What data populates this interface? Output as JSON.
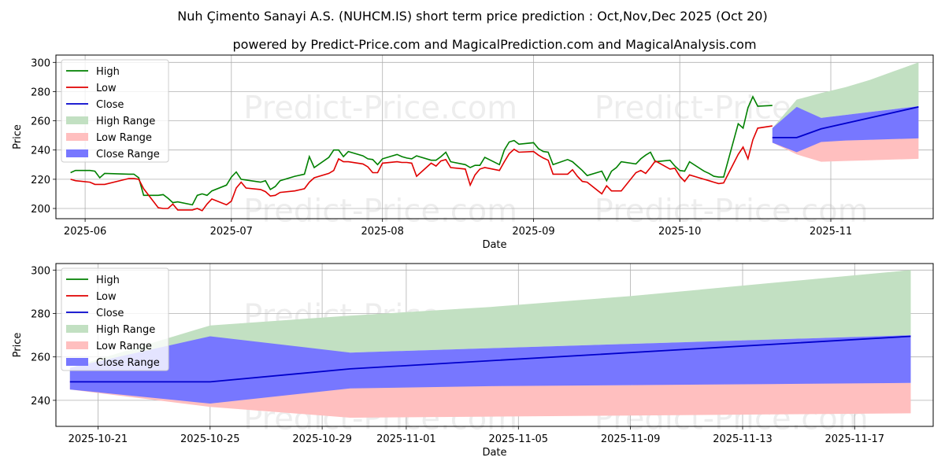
{
  "title": "Nuh Çimento Sanayi A.S. (NUHCM.IS) short term price prediction : Oct,Nov,Dec 2025 (Oct 20)",
  "subtitle": "powered by Predict-Price.com and MagicalPrediction.com and MagicalAnalysis.com",
  "watermark": "Predict-Price.com",
  "colors": {
    "high": "#008000",
    "low": "#e00000",
    "close": "#0000cc",
    "high_range": "#c2e0c2",
    "low_range": "#ffbfbf",
    "close_range": "#7777ff"
  },
  "legend": [
    "High",
    "Low",
    "Close",
    "High Range",
    "Low Range",
    "Close Range"
  ],
  "chart_data": [
    {
      "type": "line",
      "title": "",
      "xlabel": "Date",
      "ylabel": "Price",
      "xlim": [
        "2025-05-26",
        "2025-11-22"
      ],
      "ylim": [
        193,
        305
      ],
      "yticks": [
        200,
        220,
        240,
        260,
        280,
        300
      ],
      "xticks": [
        {
          "date": "2025-06-01",
          "label": "2025-06"
        },
        {
          "date": "2025-07-01",
          "label": "2025-07"
        },
        {
          "date": "2025-08-01",
          "label": "2025-08"
        },
        {
          "date": "2025-09-01",
          "label": "2025-09"
        },
        {
          "date": "2025-10-01",
          "label": "2025-10"
        },
        {
          "date": "2025-11-01",
          "label": "2025-11"
        }
      ],
      "legend_position": "top-left",
      "grid": true,
      "x": [
        "2025-05-29",
        "2025-05-30",
        "2025-06-02",
        "2025-06-03",
        "2025-06-04",
        "2025-06-05",
        "2025-06-10",
        "2025-06-11",
        "2025-06-12",
        "2025-06-13",
        "2025-06-16",
        "2025-06-17",
        "2025-06-18",
        "2025-06-19",
        "2025-06-20",
        "2025-06-23",
        "2025-06-24",
        "2025-06-25",
        "2025-06-26",
        "2025-06-27",
        "2025-06-30",
        "2025-07-01",
        "2025-07-02",
        "2025-07-03",
        "2025-07-04",
        "2025-07-07",
        "2025-07-08",
        "2025-07-09",
        "2025-07-10",
        "2025-07-11",
        "2025-07-14",
        "2025-07-16",
        "2025-07-17",
        "2025-07-18",
        "2025-07-21",
        "2025-07-22",
        "2025-07-23",
        "2025-07-24",
        "2025-07-25",
        "2025-07-28",
        "2025-07-29",
        "2025-07-30",
        "2025-07-31",
        "2025-08-01",
        "2025-08-04",
        "2025-08-05",
        "2025-08-06",
        "2025-08-07",
        "2025-08-08",
        "2025-08-11",
        "2025-08-12",
        "2025-08-13",
        "2025-08-14",
        "2025-08-15",
        "2025-08-18",
        "2025-08-19",
        "2025-08-20",
        "2025-08-21",
        "2025-08-22",
        "2025-08-25",
        "2025-08-26",
        "2025-08-27",
        "2025-08-28",
        "2025-08-29",
        "2025-09-01",
        "2025-09-02",
        "2025-09-03",
        "2025-09-04",
        "2025-09-05",
        "2025-09-08",
        "2025-09-09",
        "2025-09-10",
        "2025-09-11",
        "2025-09-12",
        "2025-09-15",
        "2025-09-16",
        "2025-09-17",
        "2025-09-18",
        "2025-09-19",
        "2025-09-22",
        "2025-09-23",
        "2025-09-24",
        "2025-09-25",
        "2025-09-26",
        "2025-09-29",
        "2025-09-30",
        "2025-10-01",
        "2025-10-02",
        "2025-10-03",
        "2025-10-06",
        "2025-10-07",
        "2025-10-08",
        "2025-10-09",
        "2025-10-10",
        "2025-10-13",
        "2025-10-14",
        "2025-10-15",
        "2025-10-16",
        "2025-10-17",
        "2025-10-20"
      ],
      "series": [
        {
          "name": "High",
          "values": [
            224.5,
            226,
            226,
            225.5,
            221,
            224,
            223.5,
            223.5,
            221,
            209,
            209,
            209.5,
            207,
            204,
            204.5,
            202.5,
            209,
            210,
            209,
            212,
            216,
            221.5,
            225,
            220,
            219.5,
            218,
            219,
            213,
            215,
            219,
            222,
            223.5,
            235.5,
            228,
            235,
            240,
            240,
            235.5,
            239,
            236,
            234,
            233.5,
            230,
            234,
            237,
            235.5,
            234.5,
            234,
            236,
            233,
            233,
            235.5,
            238.5,
            232,
            230,
            228,
            229.5,
            229.5,
            235,
            230,
            240,
            245.5,
            246.5,
            244,
            245,
            241,
            239,
            238.5,
            230,
            233.5,
            232,
            229,
            226,
            222.5,
            225.5,
            219,
            225.5,
            228,
            232,
            230.5,
            234,
            236.5,
            238.5,
            232,
            233,
            229,
            226,
            225.5,
            232,
            225.5,
            224,
            222,
            221.5,
            221.5,
            258,
            255,
            269,
            276.5,
            270,
            270.5
          ]
        },
        {
          "name": "Low",
          "values": [
            220,
            219,
            218,
            216.5,
            216.5,
            216.5,
            220.5,
            220.5,
            220,
            213.5,
            200.5,
            200,
            200,
            203,
            199,
            199,
            200,
            198.5,
            203,
            206.5,
            202.5,
            205,
            214,
            218,
            214,
            213,
            211.5,
            208.5,
            209,
            211,
            212,
            213.5,
            218,
            221,
            224,
            226,
            234,
            232,
            232,
            230.5,
            228.5,
            224.5,
            224.5,
            231,
            232,
            231.5,
            231.5,
            231,
            222,
            231,
            229,
            232.5,
            233.5,
            228,
            227,
            216,
            223,
            227,
            228,
            226,
            232,
            237.5,
            240.5,
            238.5,
            239,
            236.5,
            234.5,
            233,
            223.5,
            223.5,
            226.5,
            222,
            218.5,
            218,
            210,
            215.5,
            212,
            212,
            212,
            224.5,
            226,
            224,
            228,
            232.5,
            227,
            227.5,
            222,
            218.5,
            223,
            220,
            219,
            218,
            217,
            217.5,
            237,
            242,
            234,
            247,
            255,
            256.5
          ]
        }
      ]
    },
    {
      "type": "area",
      "title": "",
      "xlabel": "Date",
      "ylabel": "Price",
      "xlim": [
        "2025-10-19.5",
        "2025-11-19.8"
      ],
      "ylim": [
        228,
        303
      ],
      "yticks": [
        240,
        260,
        280,
        300
      ],
      "xticks": [
        {
          "date": "2025-10-21",
          "label": "2025-10-21"
        },
        {
          "date": "2025-10-25",
          "label": "2025-10-25"
        },
        {
          "date": "2025-10-29",
          "label": "2025-10-29"
        },
        {
          "date": "2025-11-01",
          "label": "2025-11-01"
        },
        {
          "date": "2025-11-05",
          "label": "2025-11-05"
        },
        {
          "date": "2025-11-09",
          "label": "2025-11-09"
        },
        {
          "date": "2025-11-13",
          "label": "2025-11-13"
        },
        {
          "date": "2025-11-17",
          "label": "2025-11-17"
        }
      ],
      "legend_position": "top-left",
      "grid": true,
      "forecast_x": [
        "2025-10-20",
        "2025-10-25",
        "2025-10-30",
        "2025-11-04",
        "2025-11-09",
        "2025-11-14",
        "2025-11-19"
      ],
      "close_x": [
        "2025-10-20",
        "2025-10-25",
        "2025-10-30",
        "2025-11-19"
      ],
      "close": [
        248.5,
        248.5,
        254.5,
        269.5
      ],
      "high_range": {
        "upper": [
          255,
          274.5,
          279,
          283,
          288,
          294,
          300
        ],
        "lower": [
          250,
          262,
          262,
          264,
          266,
          268,
          270
        ]
      },
      "low_range": {
        "upper": [
          250,
          244,
          246,
          247,
          247,
          248,
          248
        ],
        "lower": [
          245,
          237,
          232,
          232.5,
          233,
          233.5,
          234
        ]
      },
      "close_range": {
        "upper": [
          255,
          269.5,
          262,
          264,
          266,
          268,
          270
        ],
        "lower": [
          245,
          238.5,
          245.5,
          246.5,
          247,
          247.5,
          248
        ]
      }
    }
  ]
}
